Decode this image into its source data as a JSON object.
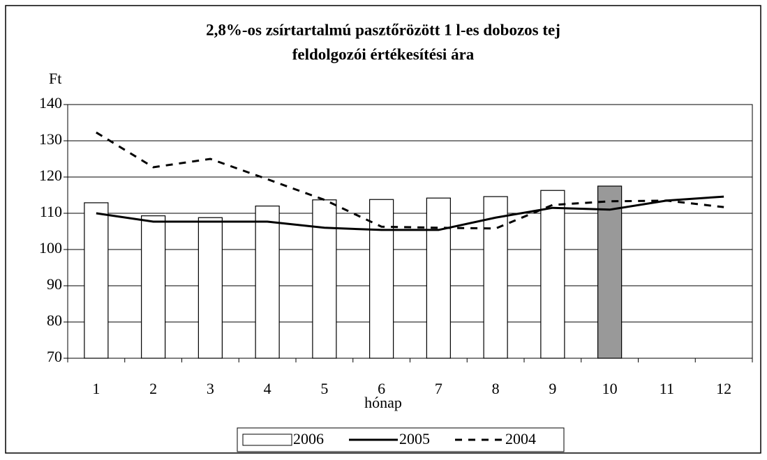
{
  "chart_data": {
    "type": "bar",
    "title": [
      "2,8%-os zsírtartalmú pasztőrözött 1 l-es dobozos tej",
      "feldolgozói értékesítési ára"
    ],
    "y_label": "Ft",
    "x_label": "hónap",
    "categories": [
      "1",
      "2",
      "3",
      "4",
      "5",
      "6",
      "7",
      "8",
      "9",
      "10",
      "11",
      "12"
    ],
    "series": [
      {
        "name": "2006",
        "type": "bar",
        "color": "#ffffff",
        "colors": [
          "#ffffff",
          "#ffffff",
          "#ffffff",
          "#ffffff",
          "#ffffff",
          "#ffffff",
          "#ffffff",
          "#ffffff",
          "#ffffff",
          "#999999"
        ],
        "values": [
          112.9,
          109.3,
          108.8,
          112,
          113.7,
          113.8,
          114.2,
          114.6,
          116.3,
          117.5,
          null,
          null
        ]
      },
      {
        "name": "2005",
        "type": "line",
        "color": "#000000",
        "dashed": false,
        "values": [
          110,
          107.7,
          107.7,
          107.7,
          106,
          105.4,
          105.4,
          108.8,
          111.5,
          111,
          113.5,
          114.6
        ]
      },
      {
        "name": "2004",
        "type": "line",
        "color": "#000000",
        "dashed": true,
        "values": [
          132.3,
          122.7,
          125,
          119.4,
          113.7,
          106.3,
          106,
          105.8,
          112.3,
          113.3,
          113.5,
          111.7
        ]
      }
    ],
    "ylim": [
      70,
      140
    ],
    "yticks": [
      70,
      80,
      90,
      100,
      110,
      120,
      130,
      140
    ],
    "grid": true,
    "legend": "bottom"
  }
}
